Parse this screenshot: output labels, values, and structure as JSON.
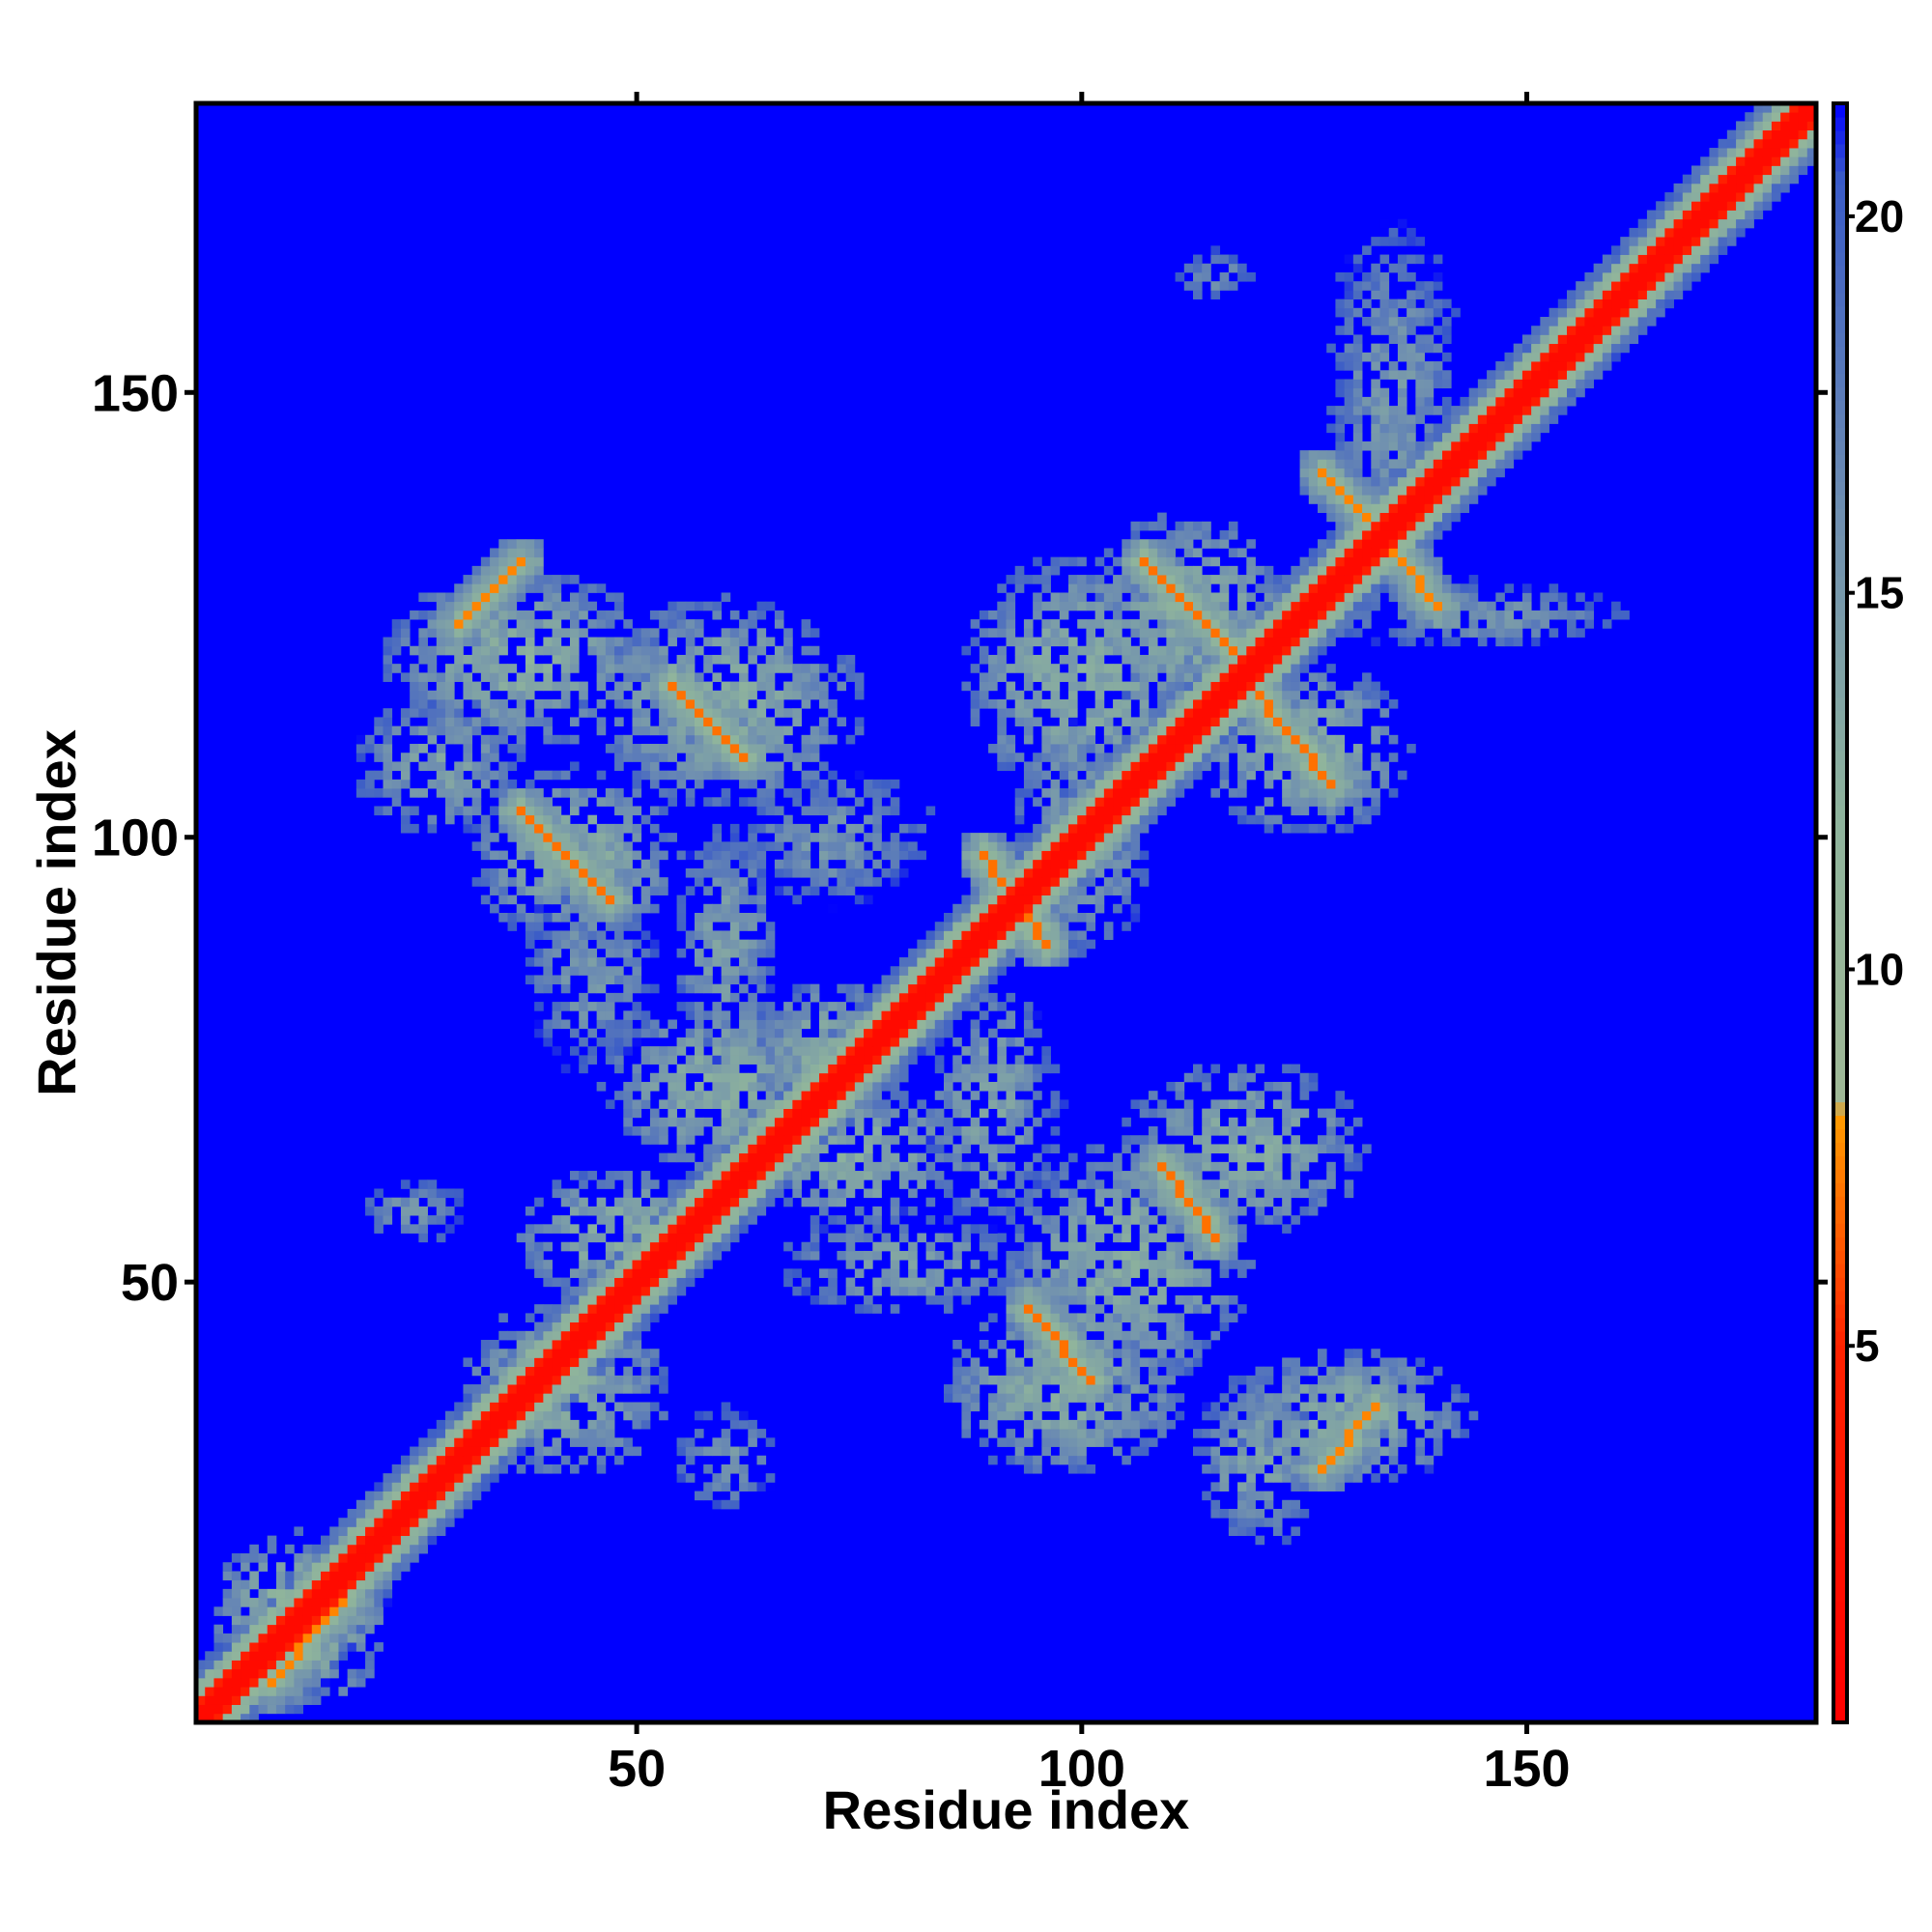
{
  "chart_data": {
    "type": "heatmap",
    "title": "",
    "xlabel": "Residue index",
    "ylabel": "Residue index",
    "xlim": [
      1,
      182
    ],
    "ylim": [
      1,
      182
    ],
    "x_ticks": [
      50,
      100,
      150
    ],
    "y_ticks": [
      50,
      100,
      150
    ],
    "grid": false,
    "diagonal_symmetric": true,
    "colorbar": {
      "ticks": [
        5,
        10,
        15,
        20
      ],
      "range": [
        0,
        21.5
      ],
      "stops": [
        {
          "value": 0,
          "color": "#ff0000"
        },
        {
          "value": 5,
          "color": "#ff2200"
        },
        {
          "value": 8,
          "color": "#ff9900"
        },
        {
          "value": 8.3,
          "color": "#9fb896"
        },
        {
          "value": 12,
          "color": "#8fb49c"
        },
        {
          "value": 16,
          "color": "#6f8fb0"
        },
        {
          "value": 20.5,
          "color": "#3a5bc8"
        },
        {
          "value": 21.5,
          "color": "#0000ff"
        }
      ]
    },
    "background_value": 21.5,
    "diagonal_band": {
      "core": 1.5,
      "mid": 8,
      "outer": 12
    },
    "contact_segments": [
      {
        "x1": 9,
        "y1": 5,
        "x2": 19,
        "y2": 17,
        "value": 7.5,
        "width": 3
      },
      {
        "x1": 36,
        "y1": 36,
        "x2": 41,
        "y2": 41,
        "value": 7.5,
        "width": 2
      },
      {
        "x1": 30,
        "y1": 124,
        "x2": 37,
        "y2": 131,
        "value": 7.5,
        "width": 2
      },
      {
        "x1": 37,
        "y1": 103,
        "x2": 47,
        "y2": 93,
        "value": 7,
        "width": 2
      },
      {
        "x1": 54,
        "y1": 117,
        "x2": 62,
        "y2": 109,
        "value": 7,
        "width": 2
      },
      {
        "x1": 107,
        "y1": 131,
        "x2": 117,
        "y2": 121,
        "value": 7,
        "width": 2
      },
      {
        "x1": 119,
        "y1": 117,
        "x2": 128,
        "y2": 106,
        "value": 7,
        "width": 2
      },
      {
        "x1": 127,
        "y1": 141,
        "x2": 132,
        "y2": 136,
        "value": 7.5,
        "width": 2
      },
      {
        "x1": 135,
        "y1": 132,
        "x2": 140,
        "y2": 126,
        "value": 7.5,
        "width": 2
      },
      {
        "x1": 89,
        "y1": 98,
        "x2": 96,
        "y2": 88,
        "value": 7,
        "width": 2
      },
      {
        "x1": 94,
        "y1": 47,
        "x2": 101,
        "y2": 39,
        "value": 7,
        "width": 2
      },
      {
        "x1": 109,
        "y1": 63,
        "x2": 115,
        "y2": 55,
        "value": 7,
        "width": 2
      },
      {
        "x1": 127,
        "y1": 29,
        "x2": 133,
        "y2": 36,
        "value": 7.5,
        "width": 2
      }
    ],
    "contact_clusters": [
      {
        "x": 12,
        "y": 12,
        "rx": 10,
        "ry": 10,
        "value": 11
      },
      {
        "x": 37,
        "y": 120,
        "rx": 16,
        "ry": 10,
        "value": 12
      },
      {
        "x": 28,
        "y": 108,
        "rx": 10,
        "ry": 8,
        "value": 13
      },
      {
        "x": 43,
        "y": 98,
        "rx": 12,
        "ry": 10,
        "value": 12
      },
      {
        "x": 60,
        "y": 115,
        "rx": 16,
        "ry": 12,
        "value": 12
      },
      {
        "x": 60,
        "y": 88,
        "rx": 6,
        "ry": 14,
        "value": 13
      },
      {
        "x": 45,
        "y": 85,
        "rx": 8,
        "ry": 12,
        "value": 14
      },
      {
        "x": 60,
        "y": 72,
        "rx": 14,
        "ry": 10,
        "value": 12
      },
      {
        "x": 75,
        "y": 64,
        "rx": 12,
        "ry": 8,
        "value": 12
      },
      {
        "x": 42,
        "y": 38,
        "rx": 12,
        "ry": 10,
        "value": 12
      },
      {
        "x": 48,
        "y": 55,
        "rx": 12,
        "ry": 8,
        "value": 12
      },
      {
        "x": 60,
        "y": 30,
        "rx": 6,
        "ry": 6,
        "value": 14
      },
      {
        "x": 100,
        "y": 118,
        "rx": 14,
        "ry": 14,
        "value": 12
      },
      {
        "x": 112,
        "y": 125,
        "rx": 12,
        "ry": 12,
        "value": 12
      },
      {
        "x": 125,
        "y": 110,
        "rx": 12,
        "ry": 10,
        "value": 12
      },
      {
        "x": 100,
        "y": 100,
        "rx": 8,
        "ry": 14,
        "value": 13
      },
      {
        "x": 90,
        "y": 70,
        "rx": 8,
        "ry": 14,
        "value": 13
      },
      {
        "x": 105,
        "y": 52,
        "rx": 14,
        "ry": 14,
        "value": 12
      },
      {
        "x": 118,
        "y": 65,
        "rx": 14,
        "ry": 10,
        "value": 12
      },
      {
        "x": 98,
        "y": 38,
        "rx": 14,
        "ry": 10,
        "value": 12
      },
      {
        "x": 130,
        "y": 35,
        "rx": 14,
        "ry": 8,
        "value": 12
      },
      {
        "x": 120,
        "y": 30,
        "rx": 8,
        "ry": 10,
        "value": 13
      },
      {
        "x": 135,
        "y": 150,
        "rx": 8,
        "ry": 20,
        "value": 14
      },
      {
        "x": 144,
        "y": 125,
        "rx": 18,
        "ry": 4,
        "value": 14
      },
      {
        "x": 72,
        "y": 76,
        "rx": 10,
        "ry": 8,
        "value": 12
      },
      {
        "x": 80,
        "y": 52,
        "rx": 14,
        "ry": 6,
        "value": 13
      },
      {
        "x": 25,
        "y": 58,
        "rx": 6,
        "ry": 4,
        "value": 14
      },
      {
        "x": 115,
        "y": 163,
        "rx": 4,
        "ry": 3,
        "value": 14
      },
      {
        "x": 72,
        "y": 100,
        "rx": 12,
        "ry": 8,
        "value": 14
      }
    ]
  }
}
